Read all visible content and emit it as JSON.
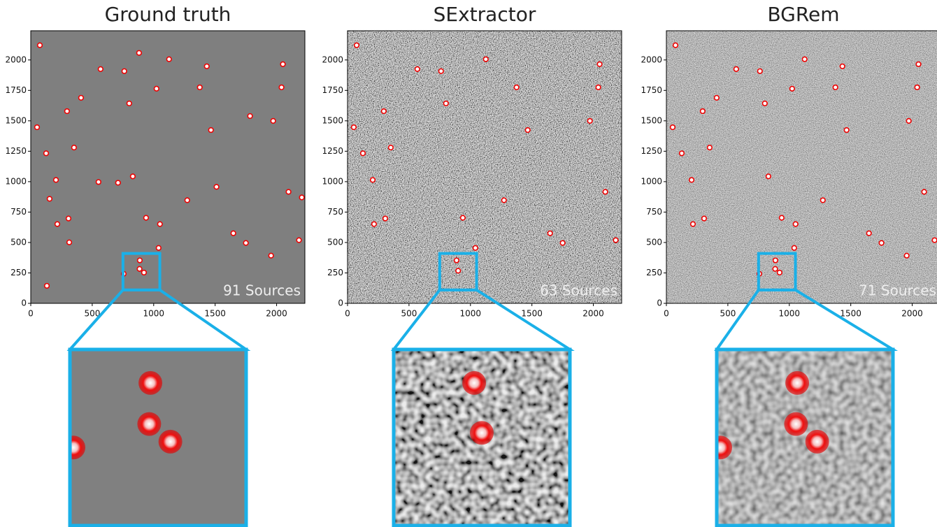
{
  "chart_data": [
    {
      "type": "scatter",
      "title": "Ground truth",
      "annotation": "91 Sources",
      "xlim": [
        0,
        2230
      ],
      "ylim": [
        0,
        2240
      ],
      "xticks": [
        0,
        500,
        1000,
        1500,
        2000
      ],
      "yticks": [
        0,
        250,
        500,
        750,
        1000,
        1250,
        1500,
        1750,
        2000
      ],
      "x": [
        74,
        51,
        125,
        205,
        153,
        216,
        307,
        131,
        313,
        352,
        295,
        409,
        568,
        761,
        881,
        801,
        1125,
        1023,
        710,
        830,
        551,
        938,
        1040,
        1051,
        1273,
        1375,
        1432,
        1466,
        1511,
        1648,
        1750,
        1784,
        1972,
        2051,
        2040,
        2097,
        2205,
        2182,
        1955,
        887,
        885,
        921,
        756
      ],
      "y": [
        2121,
        1447,
        1233,
        1014,
        859,
        651,
        697,
        144,
        501,
        1280,
        1579,
        1689,
        1925,
        1908,
        2058,
        1643,
        2006,
        1764,
        991,
        1043,
        997,
        703,
        455,
        651,
        847,
        1775,
        1948,
        1424,
        957,
        576,
        496,
        1539,
        1499,
        1965,
        1775,
        916,
        870,
        519,
        392,
        353,
        283,
        253,
        243
      ]
    },
    {
      "type": "scatter",
      "title": "SExtractor",
      "annotation": "63 Sources",
      "xlim": [
        0,
        2230
      ],
      "ylim": [
        0,
        2240
      ],
      "xticks": [
        0,
        500,
        1000,
        1500,
        2000
      ],
      "yticks": [
        0,
        250,
        500,
        750,
        1000,
        1250,
        1500,
        1750,
        2000
      ],
      "x": [
        74,
        51,
        125,
        205,
        216,
        307,
        352,
        295,
        568,
        761,
        801,
        1125,
        938,
        1040,
        1273,
        1375,
        1466,
        1648,
        1750,
        1972,
        2051,
        2040,
        2097,
        2182,
        887,
        900
      ],
      "y": [
        2121,
        1447,
        1233,
        1014,
        651,
        697,
        1280,
        1579,
        1925,
        1908,
        1643,
        2006,
        703,
        455,
        847,
        1775,
        1424,
        576,
        496,
        1499,
        1965,
        1775,
        916,
        519,
        353,
        268
      ]
    },
    {
      "type": "scatter",
      "title": "BGRem",
      "annotation": "71 Sources",
      "xlim": [
        0,
        2230
      ],
      "ylim": [
        0,
        2240
      ],
      "xticks": [
        0,
        500,
        1000,
        1500,
        2000
      ],
      "yticks": [
        0,
        250,
        500,
        750,
        1000,
        1250,
        1500,
        1750,
        2000
      ],
      "x": [
        74,
        51,
        125,
        205,
        216,
        307,
        352,
        295,
        409,
        568,
        761,
        801,
        1125,
        1023,
        830,
        938,
        1040,
        1051,
        1273,
        1375,
        1432,
        1466,
        1648,
        1750,
        1972,
        2051,
        2040,
        2097,
        2182,
        1955,
        887,
        885,
        921,
        756
      ],
      "y": [
        2121,
        1447,
        1233,
        1014,
        651,
        697,
        1280,
        1579,
        1689,
        1925,
        1908,
        1643,
        2006,
        1764,
        1043,
        703,
        455,
        651,
        847,
        1775,
        1948,
        1424,
        576,
        496,
        1499,
        1965,
        1775,
        916,
        519,
        392,
        353,
        283,
        253,
        243
      ]
    }
  ]
}
